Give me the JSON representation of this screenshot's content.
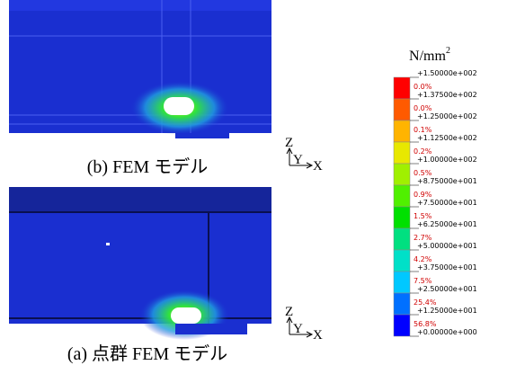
{
  "figures": [
    {
      "caption": "(b) FEM モデル",
      "axes": {
        "z": "Z",
        "y": "Y",
        "x": "X"
      }
    },
    {
      "caption": "(a) 点群 FEM モデル",
      "axes": {
        "z": "Z",
        "y": "Y",
        "x": "X"
      }
    }
  ],
  "legend": {
    "unit": {
      "base": "N/mm",
      "sup": "2"
    },
    "ticks": [
      "+1.50000e+002",
      "+1.37500e+002",
      "+1.25000e+002",
      "+1.12500e+002",
      "+1.00000e+002",
      "+8.75000e+001",
      "+7.50000e+001",
      "+6.25000e+001",
      "+5.00000e+001",
      "+3.75000e+001",
      "+2.50000e+001",
      "+1.25000e+001",
      "+0.00000e+000"
    ],
    "bins": [
      {
        "color": "#ff0000",
        "percent": "0.0%"
      },
      {
        "color": "#ff5a00",
        "percent": "0.0%"
      },
      {
        "color": "#ffb400",
        "percent": "0.1%"
      },
      {
        "color": "#e8e800",
        "percent": "0.2%"
      },
      {
        "color": "#a0f000",
        "percent": "0.5%"
      },
      {
        "color": "#50f000",
        "percent": "0.9%"
      },
      {
        "color": "#00e000",
        "percent": "1.5%"
      },
      {
        "color": "#00e080",
        "percent": "2.7%"
      },
      {
        "color": "#00e0c8",
        "percent": "4.2%"
      },
      {
        "color": "#00c8ff",
        "percent": "7.5%"
      },
      {
        "color": "#0070ff",
        "percent": "25.4%"
      },
      {
        "color": "#0000ff",
        "percent": "56.8%"
      }
    ]
  }
}
